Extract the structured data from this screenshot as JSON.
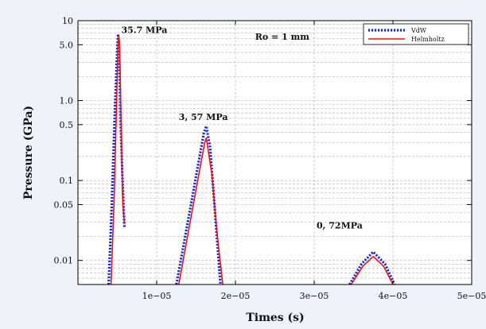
{
  "chart_data": {
    "type": "line",
    "xlabel": "Times (s)",
    "ylabel": "Pressure (GPa)",
    "x_scale": "linear",
    "y_scale": "log",
    "xlim": [
      0,
      5e-05
    ],
    "ylim": [
      0.005,
      10
    ],
    "x_ticks": [
      {
        "value": 1e-05,
        "label": "1e−05"
      },
      {
        "value": 2e-05,
        "label": "2e−05"
      },
      {
        "value": 3e-05,
        "label": "3e−05"
      },
      {
        "value": 4e-05,
        "label": "4e−05"
      },
      {
        "value": 5e-05,
        "label": "5e−05"
      }
    ],
    "y_ticks": [
      {
        "value": 10,
        "label": "10"
      },
      {
        "value": 5,
        "label": "5.0"
      },
      {
        "value": 1,
        "label": "1.0"
      },
      {
        "value": 0.5,
        "label": "0.5"
      },
      {
        "value": 0.1,
        "label": "0.1"
      },
      {
        "value": 0.05,
        "label": "0.05"
      },
      {
        "value": 0.01,
        "label": "0.01"
      }
    ],
    "grid": true,
    "legend_position": "top-right",
    "annotations": [
      {
        "text": "35.7 MPa",
        "x": 5.5e-06,
        "y": 7.0
      },
      {
        "text": "Ro = 1 mm",
        "x": 2.25e-05,
        "y": 5.8
      },
      {
        "text": "3, 57 MPa",
        "x": 1.28e-05,
        "y": 0.57
      },
      {
        "text": "0, 72MPa",
        "x": 3.03e-05,
        "y": 0.025
      }
    ],
    "series": [
      {
        "name": "VdW",
        "color": "#1a2bd6",
        "style": "dotted",
        "points": [
          [
            3.9e-06,
            0.005
          ],
          [
            4.3e-06,
            0.05
          ],
          [
            4.7e-06,
            0.8
          ],
          [
            5e-06,
            4.5
          ],
          [
            5.1e-06,
            6.8
          ],
          [
            5.2e-06,
            5.0
          ],
          [
            5.4e-06,
            0.6
          ],
          [
            5.7e-06,
            0.08
          ],
          [
            5.9e-06,
            0.026
          ],
          null,
          [
            1.25e-05,
            0.005
          ],
          [
            1.45e-05,
            0.06
          ],
          [
            1.6e-05,
            0.4
          ],
          [
            1.63e-05,
            0.48
          ],
          [
            1.68e-05,
            0.25
          ],
          [
            1.75e-05,
            0.03
          ],
          [
            1.81e-05,
            0.005
          ],
          null,
          [
            3.45e-05,
            0.005
          ],
          [
            3.6e-05,
            0.009
          ],
          [
            3.75e-05,
            0.0128
          ],
          [
            3.9e-05,
            0.009
          ],
          [
            4.02e-05,
            0.005
          ]
        ]
      },
      {
        "name": "Helmholtz",
        "color": "#e8121a",
        "style": "solid",
        "points": [
          [
            4.2e-06,
            0.005
          ],
          [
            4.6e-06,
            0.06
          ],
          [
            4.9e-06,
            0.9
          ],
          [
            5.1e-06,
            5.5
          ],
          [
            5.2e-06,
            6.3
          ],
          [
            5.3e-06,
            4.8
          ],
          [
            5.5e-06,
            0.4
          ],
          [
            5.7e-06,
            0.05
          ],
          [
            5.9e-06,
            0.03
          ],
          null,
          [
            1.28e-05,
            0.005
          ],
          [
            1.48e-05,
            0.06
          ],
          [
            1.61e-05,
            0.3
          ],
          [
            1.63e-05,
            0.34
          ],
          [
            1.7e-05,
            0.12
          ],
          [
            1.77e-05,
            0.02
          ],
          [
            1.84e-05,
            0.005
          ],
          null,
          [
            3.47e-05,
            0.005
          ],
          [
            3.62e-05,
            0.0085
          ],
          [
            3.75e-05,
            0.0112
          ],
          [
            3.88e-05,
            0.0085
          ],
          [
            4e-05,
            0.005
          ]
        ]
      }
    ]
  }
}
